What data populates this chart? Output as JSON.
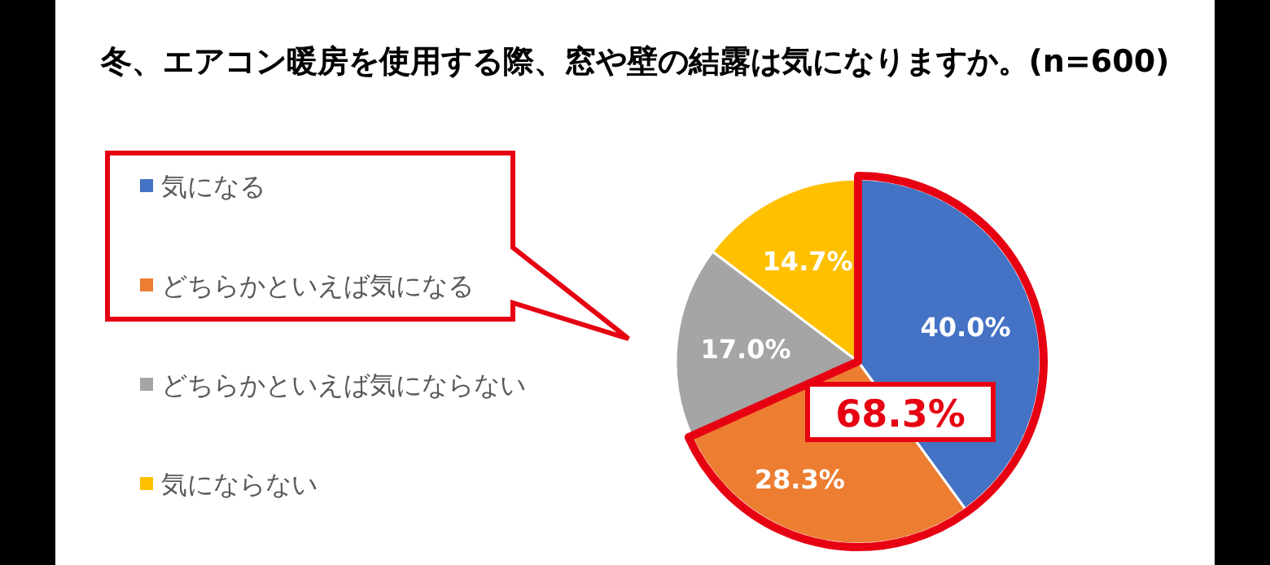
{
  "chart_data": {
    "type": "pie",
    "title": "冬、エアコン暖房を使用する際、窓や壁の結露は気になりますか。(n=600)",
    "categories": [
      "気になる",
      "どちらかといえば気になる",
      "どちらかといえば気にならない",
      "気にならない"
    ],
    "values": [
      40.0,
      28.3,
      17.0,
      14.7
    ],
    "colors": [
      "#4472c4",
      "#ed7d31",
      "#a5a5a5",
      "#ffc000"
    ],
    "value_labels": [
      "40.0%",
      "28.3%",
      "17.0%",
      "14.7%"
    ],
    "legend": "left",
    "annotations": [
      "68.3%"
    ]
  }
}
